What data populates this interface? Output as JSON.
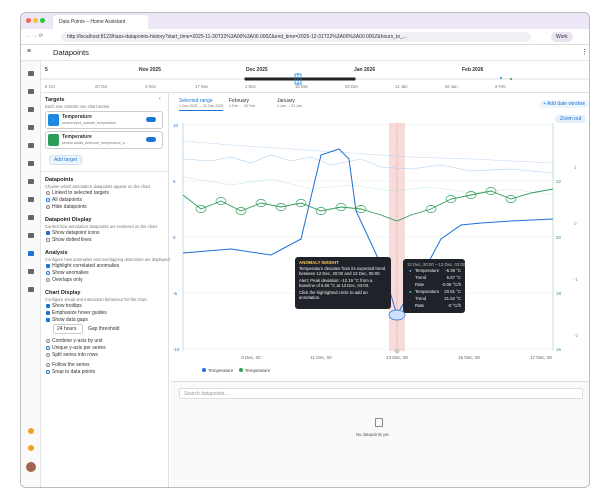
{
  "browser": {
    "tab_title": "Data Points – Home Assistant",
    "url": "http://localhost:8123/hass-datapoints-history?start_time=2025-11-30T22%3A00%3A00.000Z&end_time=2025-12-31T22%3A00%3A00.000Z&hours_to_...",
    "profile": "Work"
  },
  "header": {
    "title": "Datapoints"
  },
  "timeline": {
    "months": [
      "5",
      "Nov 2025",
      "Dec 2025",
      "Jan 2026",
      "Feb 2026"
    ],
    "days": [
      "6 Oct",
      "20 Oct",
      "3 Nov",
      "17 Nov",
      "1 Dec",
      "15 Dec",
      "29 Dec",
      "12 Jan",
      "26 Jan",
      "9 Feb"
    ]
  },
  "targets": {
    "title": "Targets",
    "subtitle": "Each row controls one chart series.",
    "rows": [
      {
        "name": "Temperature",
        "entity": "sensor.input_outside_temperature"
      },
      {
        "name": "Temperature",
        "entity": "sensor.adults_bedroom_temperature_s..."
      }
    ],
    "add": "Add target"
  },
  "datapoints": {
    "title": "Datapoints",
    "subtitle": "Choose which annotation datapoints appear on the chart.",
    "options": [
      "Linked to selected targets",
      "All datapoints",
      "Hide datapoints"
    ]
  },
  "display": {
    "title": "Datapoint Display",
    "subtitle": "Control how annotation datapoints are rendered on the chart.",
    "options": [
      "Show datapoint icons",
      "Show dotted lines"
    ]
  },
  "analysis": {
    "title": "Analysis",
    "subtitle": "Configure how anomalies and overlapping detections are displayed.",
    "options": [
      "Highlight correlated anomalies",
      "Show anomalies",
      "Overlaps only"
    ]
  },
  "chart_display": {
    "title": "Chart Display",
    "subtitle": "Configure visual and interaction behaviour for the chart.",
    "checks": [
      "Show tooltips",
      "Emphasize hover guides",
      "Show data gaps"
    ],
    "gap_value": "24 hours",
    "gap_label": "Gap threshold",
    "axis_options": [
      "Combine y-axis by unit",
      "Unique y-axis per series",
      "Split series into rows"
    ],
    "follow_options": [
      "Follow the series",
      "Snap to data points"
    ]
  },
  "windows": {
    "tabs": [
      {
        "name": "Selected range",
        "range": "1 Dec 2025 → 31 Dec 2025"
      },
      {
        "name": "February",
        "range": "1 Feb → 28 Feb"
      },
      {
        "name": "January",
        "range": "1 Jan → 31 Jan"
      }
    ],
    "add": "+ Add date window",
    "zoom": "Zoom out"
  },
  "chart": {
    "left_ticks": [
      "10",
      "5",
      "0",
      "-5",
      "-10"
    ],
    "right_ticks_a": [
      "22",
      "20",
      "18",
      "16"
    ],
    "right_ticks_b": [
      "1",
      "0",
      "-1",
      "-2"
    ],
    "x_ticks": [
      "6 Dec, 00",
      "11 Dec, 00",
      "13 Dec, 00",
      "16 Dec, 00",
      "17 Dec, 00"
    ],
    "legend": [
      "Temperature",
      "Temperature"
    ]
  },
  "insight": {
    "title": "ANOMALY INSIGHT",
    "text": "Temperature deviates from its expected trend between 12 Dec, 20:00 and 13 Dec, 05:00.",
    "alert": "Alert: Peak deviation: -12.19 °C from a baseline of 5.66 °C at 13 Dec, 03:00.",
    "hint": "Click the highlighted circle to add an annotation."
  },
  "tooltip": {
    "title": "12 Dec, 20:00 – 13 Dec, 03:00",
    "rows": [
      [
        "Temperature",
        "-6.39 °C"
      ],
      [
        "Trend",
        "5.67 °C"
      ],
      [
        "Rate",
        "-0.06 °C/h"
      ],
      [
        "Temperature",
        "20.61 °C"
      ],
      [
        "Trend",
        "21.52 °C"
      ],
      [
        "Rate",
        "-0 °C/h"
      ]
    ]
  },
  "bottom": {
    "search": "Search datapoints...",
    "empty": "No datapoints yet."
  }
}
